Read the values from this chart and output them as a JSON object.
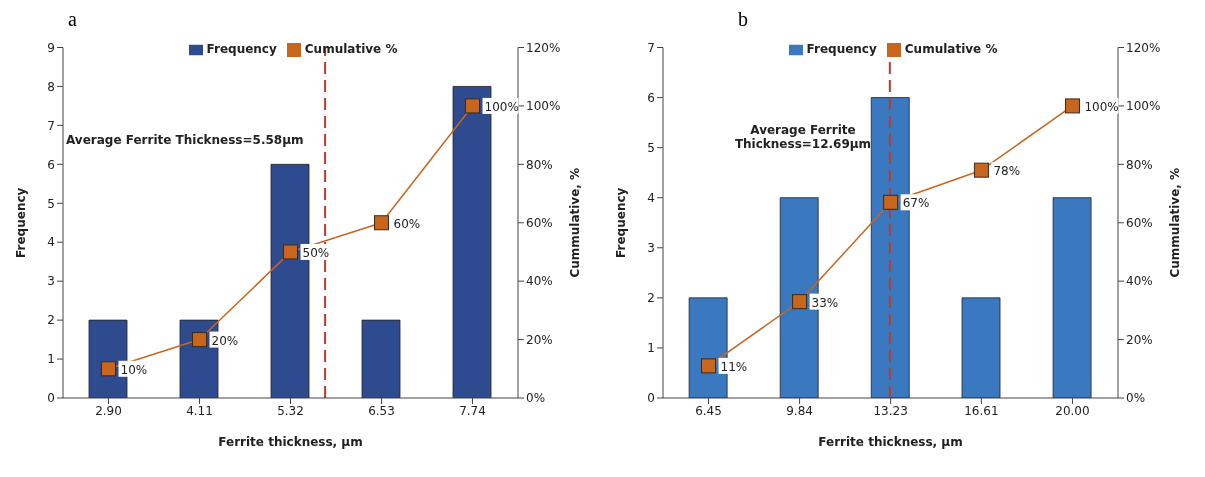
{
  "chart_data": [
    {
      "type": "bar",
      "title": "a",
      "xlabel": "Ferrite thickness, µm",
      "ylabel": "Frequency",
      "y2label": "Cummulative, %",
      "annotations": [
        "Average Ferrite Thickness=5.58µm"
      ],
      "x": [
        2.9,
        4.11,
        5.32,
        6.53,
        7.74
      ],
      "xlim": [
        2.295,
        8.345
      ],
      "xticks": [
        {
          "value": 2.9,
          "label": "2.90"
        },
        {
          "value": 4.11,
          "label": "4.11"
        },
        {
          "value": 5.32,
          "label": "5.32"
        },
        {
          "value": 6.53,
          "label": "6.53"
        },
        {
          "value": 7.74,
          "label": "7.74"
        }
      ],
      "ylim": [
        0,
        9
      ],
      "yticks": [
        0,
        1,
        2,
        3,
        4,
        5,
        6,
        7,
        8,
        9
      ],
      "y2lim": [
        0,
        120
      ],
      "y2ticks": [
        {
          "value": 0,
          "label": "0%"
        },
        {
          "value": 20,
          "label": "20%"
        },
        {
          "value": 40,
          "label": "40%"
        },
        {
          "value": 60,
          "label": "60%"
        },
        {
          "value": 80,
          "label": "80%"
        },
        {
          "value": 100,
          "label": "100%"
        },
        {
          "value": 120,
          "label": "120%"
        }
      ],
      "series": [
        {
          "name": "Frequency",
          "color": "#2f4b8f",
          "values": [
            2,
            2,
            6,
            2,
            8
          ]
        },
        {
          "name": "Cumulative %",
          "type": "line",
          "axis": "y2",
          "color": "#c8661e",
          "marker": "square",
          "values": [
            10,
            20,
            50,
            60,
            100
          ],
          "value_labels": [
            "10%",
            "20%",
            "50%",
            "60%",
            "100%"
          ]
        }
      ],
      "ref_lines": [
        {
          "axis": "x",
          "value": 5.78,
          "color": "#c0392b",
          "line_style": "dashed"
        }
      ],
      "legend": "top",
      "grid": false
    },
    {
      "type": "bar",
      "title": "b",
      "xlabel": "Ferrite thickness, µm",
      "ylabel": "Frequency",
      "y2label": "Cummulative, %",
      "annotations": [
        "Average Ferrite Thickness=12.69µm"
      ],
      "x": [
        6.45,
        9.84,
        13.23,
        16.61,
        20.0
      ],
      "xlim": [
        4.755,
        21.695
      ],
      "xticks": [
        {
          "value": 6.45,
          "label": "6.45"
        },
        {
          "value": 9.84,
          "label": "9.84"
        },
        {
          "value": 13.23,
          "label": "13.23"
        },
        {
          "value": 16.61,
          "label": "16.61"
        },
        {
          "value": 20.0,
          "label": "20.00"
        }
      ],
      "ylim": [
        0,
        7
      ],
      "yticks": [
        0,
        1,
        2,
        3,
        4,
        5,
        6,
        7
      ],
      "y2lim": [
        0,
        120
      ],
      "y2ticks": [
        {
          "value": 0,
          "label": "0%"
        },
        {
          "value": 20,
          "label": "20%"
        },
        {
          "value": 40,
          "label": "40%"
        },
        {
          "value": 60,
          "label": "60%"
        },
        {
          "value": 80,
          "label": "80%"
        },
        {
          "value": 100,
          "label": "100%"
        },
        {
          "value": 120,
          "label": "120%"
        }
      ],
      "series": [
        {
          "name": "Frequency",
          "color": "#3a78c0",
          "values": [
            2,
            4,
            6,
            2,
            4
          ]
        },
        {
          "name": "Cumulative %",
          "type": "line",
          "axis": "y2",
          "color": "#c8661e",
          "marker": "square",
          "values": [
            11,
            33,
            67,
            78,
            100
          ],
          "value_labels": [
            "11%",
            "33%",
            "67%",
            "78%",
            "100%"
          ]
        }
      ],
      "ref_lines": [
        {
          "axis": "x",
          "value": 13.2,
          "color": "#c0392b",
          "line_style": "dashed"
        }
      ],
      "legend": "top",
      "grid": false
    }
  ]
}
